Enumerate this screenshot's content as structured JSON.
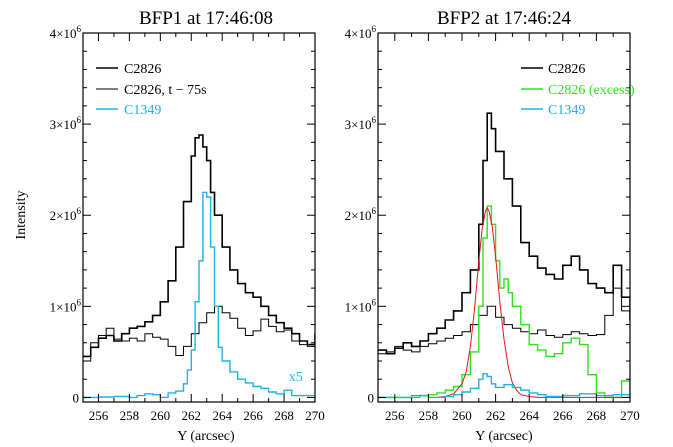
{
  "chart_data": [
    {
      "type": "line",
      "style": "step",
      "title": "BFP1 at 17:46:08",
      "xlabel": "Y (arcsec)",
      "ylabel": "Intensity",
      "xlim": [
        255,
        270
      ],
      "ylim": [
        -50000,
        4000000
      ],
      "xticks": [
        256,
        258,
        260,
        262,
        264,
        266,
        268,
        270
      ],
      "yticks": [
        {
          "value": 0,
          "label": "0"
        },
        {
          "value": 1000000,
          "label": "1×10",
          "exp": "6"
        },
        {
          "value": 2000000,
          "label": "2×10",
          "exp": "6"
        },
        {
          "value": 3000000,
          "label": "3×10",
          "exp": "6"
        },
        {
          "value": 4000000,
          "label": "4×10",
          "exp": "6"
        }
      ],
      "legend_position": "top-left",
      "annotation": {
        "text": "x5",
        "x": 268.3,
        "y": 180000,
        "color": "#1fb2e6"
      },
      "series": [
        {
          "name": "C2826",
          "color": "#000000",
          "width": 1.6,
          "x": [
            255,
            255.5,
            256,
            256.5,
            257,
            257.5,
            258,
            258.5,
            259,
            259.5,
            260,
            260.5,
            261,
            261.5,
            262,
            262.25,
            262.5,
            262.75,
            263,
            263.25,
            263.5,
            264,
            264.5,
            265,
            265.5,
            266,
            266.5,
            267,
            267.5,
            268,
            268.5,
            269,
            269.5,
            270
          ],
          "y": [
            450000,
            550000,
            650000,
            680000,
            620000,
            700000,
            760000,
            780000,
            830000,
            900000,
            1050000,
            1280000,
            1650000,
            2150000,
            2650000,
            2850000,
            2880000,
            2750000,
            2600000,
            2250000,
            2000000,
            1650000,
            1400000,
            1250000,
            1150000,
            1100000,
            1000000,
            900000,
            820000,
            760000,
            700000,
            620000,
            580000,
            700000
          ]
        },
        {
          "name": "C2826, t − 75s",
          "color": "#000000",
          "width": 1.0,
          "x": [
            255,
            255.5,
            256,
            256.5,
            257,
            257.5,
            258,
            258.5,
            259,
            259.5,
            260,
            260.5,
            261,
            261.5,
            262,
            262.5,
            263,
            263.5,
            264,
            264.5,
            265,
            265.5,
            266,
            266.5,
            267,
            267.5,
            268,
            268.5,
            269,
            269.5,
            270
          ],
          "y": [
            400000,
            600000,
            680000,
            760000,
            640000,
            620000,
            650000,
            620000,
            700000,
            660000,
            640000,
            560000,
            460000,
            560000,
            700000,
            820000,
            930000,
            1000000,
            930000,
            870000,
            760000,
            680000,
            730000,
            860000,
            780000,
            720000,
            740000,
            620000,
            580000,
            560000,
            800000
          ]
        },
        {
          "name": "C1349",
          "color": "#1fb2e6",
          "width": 1.4,
          "x": [
            255,
            256,
            257,
            258,
            258.5,
            259,
            259.5,
            260,
            260.5,
            261,
            261.5,
            261.75,
            262,
            262.25,
            262.5,
            262.75,
            263,
            263.25,
            263.5,
            263.75,
            264,
            264.5,
            265,
            265.5,
            266,
            266.5,
            267,
            267.5,
            268,
            268.5,
            269,
            270
          ],
          "y": [
            0,
            5000,
            10000,
            0,
            20000,
            40000,
            30000,
            0,
            50000,
            70000,
            150000,
            300000,
            520000,
            1050000,
            1500000,
            2250000,
            2200000,
            1650000,
            1000000,
            550000,
            400000,
            280000,
            200000,
            160000,
            120000,
            100000,
            60000,
            40000,
            80000,
            20000,
            20000,
            10000
          ]
        }
      ]
    },
    {
      "type": "line",
      "style": "step",
      "title": "BFP2 at 17:46:24",
      "xlabel": "Y (arcsec)",
      "ylabel": "",
      "xlim": [
        255,
        270
      ],
      "ylim": [
        -50000,
        4000000
      ],
      "xticks": [
        256,
        258,
        260,
        262,
        264,
        266,
        268,
        270
      ],
      "yticks": [
        {
          "value": 0,
          "label": "0"
        },
        {
          "value": 1000000,
          "label": "1×10",
          "exp": "6"
        },
        {
          "value": 2000000,
          "label": "2×10",
          "exp": "6"
        },
        {
          "value": 3000000,
          "label": "3×10",
          "exp": "6"
        },
        {
          "value": 4000000,
          "label": "4×10",
          "exp": "6"
        }
      ],
      "legend_position": "top-right",
      "series": [
        {
          "name": "C2826",
          "color": "#000000",
          "width": 1.6,
          "x": [
            255,
            255.5,
            256,
            256.5,
            257,
            257.5,
            258,
            258.5,
            259,
            259.5,
            260,
            260.5,
            261,
            261.25,
            261.5,
            261.75,
            262,
            262.5,
            263,
            263.5,
            264,
            264.5,
            265,
            265.5,
            266,
            266.5,
            267,
            267.5,
            268,
            268.5,
            269,
            269.5,
            270
          ],
          "y": [
            520000,
            480000,
            540000,
            600000,
            560000,
            620000,
            700000,
            760000,
            850000,
            950000,
            1150000,
            1400000,
            1900000,
            2600000,
            3120000,
            2950000,
            2700000,
            2400000,
            2100000,
            1700000,
            1550000,
            1420000,
            1350000,
            1300000,
            1450000,
            1550000,
            1400000,
            1250000,
            1200000,
            1150000,
            1450000,
            1100000,
            850000
          ]
        },
        {
          "name": "C2826, t − 75s",
          "color": "#000000",
          "width": 1.0,
          "x": [
            255,
            255.5,
            256,
            256.5,
            257,
            257.5,
            258,
            258.5,
            259,
            259.5,
            260,
            260.5,
            261,
            261.5,
            262,
            262.5,
            263,
            263.5,
            264,
            264.5,
            265,
            265.5,
            266,
            266.5,
            267,
            267.5,
            268,
            268.5,
            269,
            269.5,
            270
          ],
          "y": [
            480000,
            500000,
            560000,
            520000,
            500000,
            560000,
            590000,
            620000,
            650000,
            680000,
            720000,
            800000,
            900000,
            1000000,
            880000,
            800000,
            760000,
            720000,
            700000,
            740000,
            680000,
            660000,
            690000,
            720000,
            700000,
            680000,
            690000,
            900000,
            1200000,
            950000,
            1000000
          ]
        },
        {
          "name": "C2826 (excess)",
          "color": "#33dd22",
          "width": 1.4,
          "x": [
            255,
            256,
            257,
            257.5,
            258,
            258.5,
            259,
            259.5,
            260,
            260.5,
            261,
            261.25,
            261.5,
            261.75,
            262,
            262.25,
            262.5,
            262.75,
            263,
            263.5,
            264,
            264.5,
            265,
            265.5,
            266,
            266.5,
            267,
            267.5,
            268,
            268.5,
            269,
            269.5,
            270
          ],
          "y": [
            0,
            0,
            0,
            20000,
            30000,
            50000,
            80000,
            120000,
            250000,
            500000,
            1000000,
            1750000,
            2100000,
            1900000,
            1500000,
            1200000,
            1300000,
            1150000,
            1000000,
            800000,
            580000,
            520000,
            450000,
            480000,
            600000,
            650000,
            580000,
            250000,
            50000,
            0,
            0,
            180000,
            50000
          ]
        },
        {
          "name": "",
          "color": "#e8141e",
          "width": 1.0,
          "kind": "fit",
          "x": [
            258.5,
            259,
            259.5,
            260,
            260.25,
            260.5,
            260.75,
            261,
            261.2,
            261.4,
            261.5,
            261.6,
            261.8,
            262,
            262.25,
            262.5,
            262.75,
            263,
            263.25,
            263.5,
            264,
            264.5,
            265,
            266,
            267,
            268,
            269,
            270
          ],
          "y": [
            0,
            10000,
            40000,
            150000,
            280000,
            560000,
            980000,
            1500000,
            1850000,
            2050000,
            2080000,
            2050000,
            1880000,
            1550000,
            1050000,
            640000,
            340000,
            160000,
            80000,
            30000,
            10000,
            0,
            0,
            0,
            0,
            0,
            0,
            0
          ]
        },
        {
          "name": "C1349",
          "color": "#1fb2e6",
          "width": 1.4,
          "x": [
            255,
            256,
            257,
            258,
            259,
            259.5,
            260,
            260.5,
            261,
            261.25,
            261.5,
            261.75,
            262,
            262.5,
            263,
            263.5,
            264,
            264.5,
            265,
            266,
            267,
            268,
            269,
            270
          ],
          "y": [
            0,
            0,
            20000,
            0,
            10000,
            30000,
            60000,
            100000,
            200000,
            260000,
            230000,
            150000,
            110000,
            140000,
            110000,
            80000,
            50000,
            30000,
            10000,
            20000,
            40000,
            20000,
            30000,
            0
          ]
        }
      ]
    }
  ],
  "panels": [
    {
      "title": "BFP1 at 17:46:08",
      "xlabel": "Y (arcsec)",
      "ylabel": "Intensity",
      "legend": [
        {
          "label": "C2826",
          "color": "#000000"
        },
        {
          "label": "C2826, t − 75s",
          "color": "#000000"
        },
        {
          "label": "C1349",
          "color": "#1fb2e6"
        }
      ]
    },
    {
      "title": "BFP2 at 17:46:24",
      "xlabel": "Y (arcsec)",
      "legend": [
        {
          "label": "C2826",
          "color": "#000000"
        },
        {
          "label": "C2826 (excess)",
          "color": "#33dd22"
        },
        {
          "label": "C1349",
          "color": "#1fb2e6"
        }
      ]
    }
  ]
}
